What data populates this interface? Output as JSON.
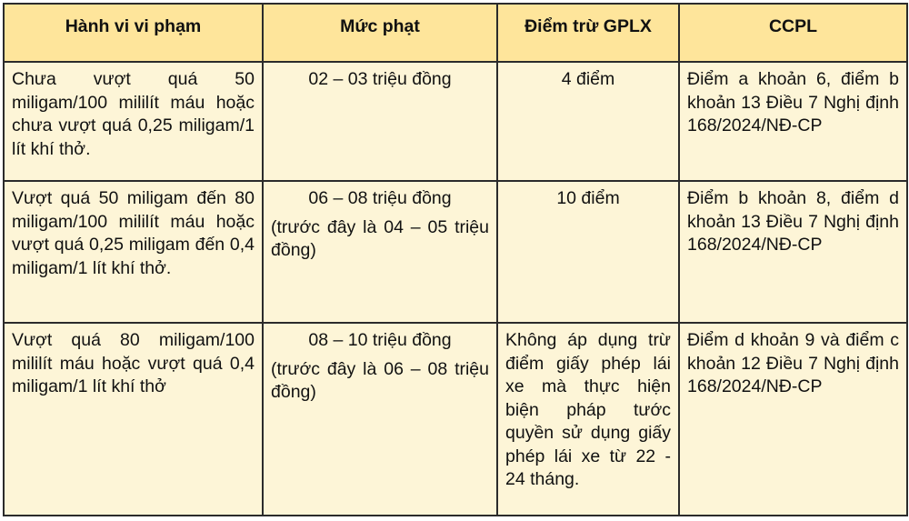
{
  "colors": {
    "header_bg": "#fee59b",
    "cell_bg": "#fdf5d7",
    "border": "#2b2b2b"
  },
  "headers": [
    "Hành vi vi phạm",
    "Mức phạt",
    "Điểm trừ GPLX",
    "CCPL"
  ],
  "rows": [
    {
      "violation": "Chưa vượt quá 50 miligam/100 mililít máu hoặc chưa vượt quá 0,25 miligam/1 lít khí thở.",
      "fine": "02 – 03 triệu đồng",
      "fine_previous": "",
      "points": "4 điểm",
      "legal_basis": "Điểm a khoản 6, điểm b khoản 13 Điều 7 Nghị định 168/2024/NĐ-CP"
    },
    {
      "violation": "Vượt quá 50 miligam đến 80 miligam/100 mililít máu hoặc vượt quá 0,25 miligam đến 0,4 miligam/1 lít khí thở.",
      "fine": "06 – 08 triệu đồng",
      "fine_previous": "(trước đây là 04 – 05 triệu đồng)",
      "points": "10 điểm",
      "legal_basis": "Điểm b khoản 8, điểm d khoản 13 Điều 7 Nghị định 168/2024/NĐ-CP"
    },
    {
      "violation": "Vượt quá 80 miligam/100 mililít máu hoặc vượt quá 0,4 miligam/1 lít khí thở",
      "fine": "08 – 10 triệu đồng",
      "fine_previous": "(trước đây là 06 – 08 triệu đồng)",
      "points": "Không áp dụng trừ điểm giấy phép lái xe mà thực hiện biện pháp tước quyền sử dụng giấy phép lái xe từ 22 - 24 tháng.",
      "legal_basis": "Điểm d khoản 9 và điểm c khoản 12 Điều 7 Nghị định 168/2024/NĐ-CP"
    }
  ]
}
